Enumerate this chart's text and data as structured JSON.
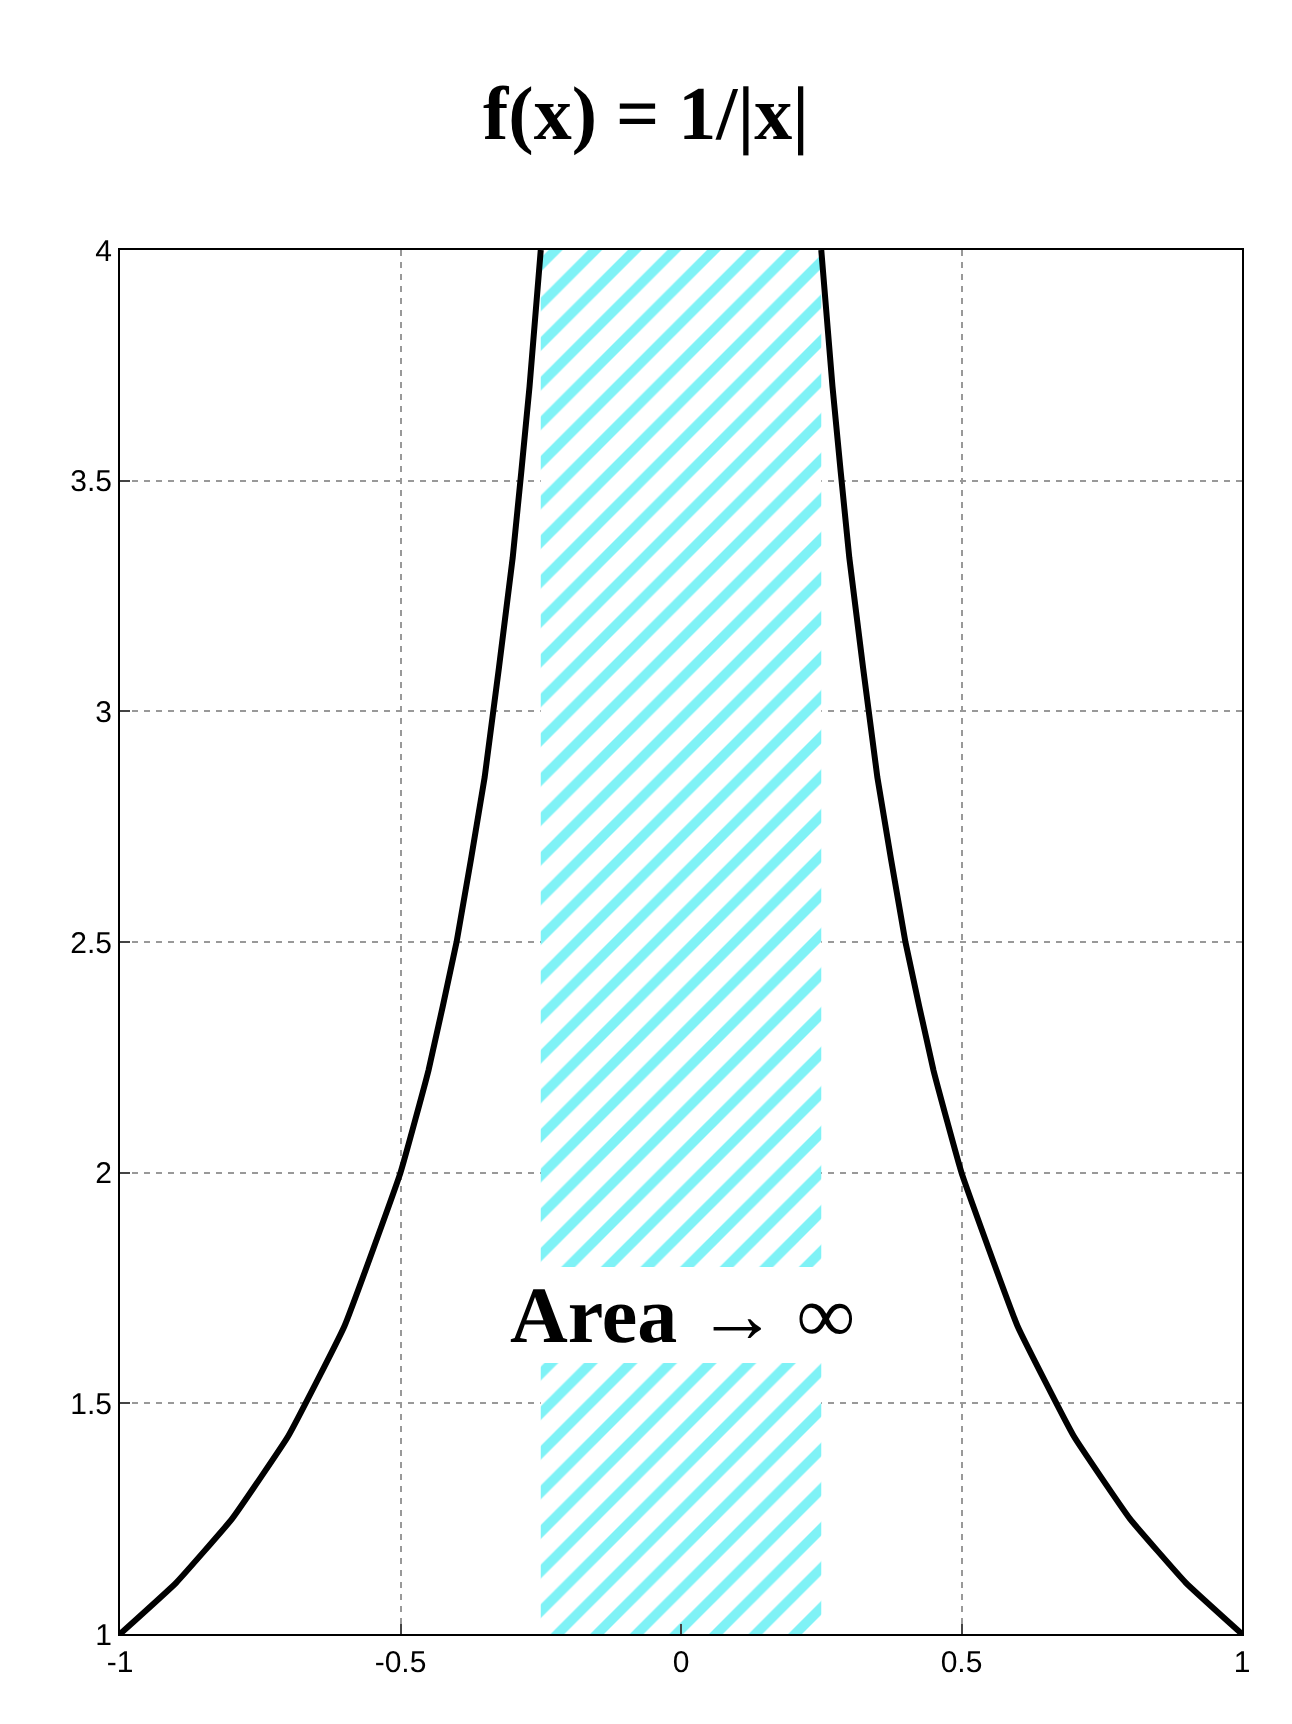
{
  "chart_data": {
    "type": "line",
    "title": "f(x) = 1/|x|",
    "series": [
      {
        "color": "#000000",
        "x": [
          -1,
          -0.9,
          -0.8,
          -0.7,
          -0.6,
          -0.5,
          -0.45,
          -0.4,
          -0.35,
          -0.3,
          -0.27,
          -0.25,
          0,
          0.25,
          0.27,
          0.3,
          0.35,
          0.4,
          0.45,
          0.5,
          0.6,
          0.7,
          0.8,
          0.9,
          1
        ],
        "values": [
          1,
          1.111,
          1.25,
          1.429,
          1.667,
          2,
          2.222,
          2.5,
          2.857,
          3.333,
          3.704,
          4,
          null,
          4,
          3.704,
          3.333,
          2.857,
          2.5,
          2.222,
          2,
          1.667,
          1.429,
          1.25,
          1.111,
          1
        ]
      }
    ],
    "bands": [
      {
        "axis": "x",
        "from": -0.25,
        "to": 0.25,
        "label": "Area → ∞",
        "color": "#00e5ee"
      }
    ],
    "xlim": [
      -1,
      1
    ],
    "ylim": [
      1,
      4
    ],
    "xticks": [
      -1,
      -0.5,
      0,
      0.5,
      1
    ],
    "yticks": [
      1,
      1.5,
      2,
      2.5,
      3,
      3.5,
      4
    ],
    "grid": true,
    "marker": "none",
    "line_style": "solid"
  }
}
